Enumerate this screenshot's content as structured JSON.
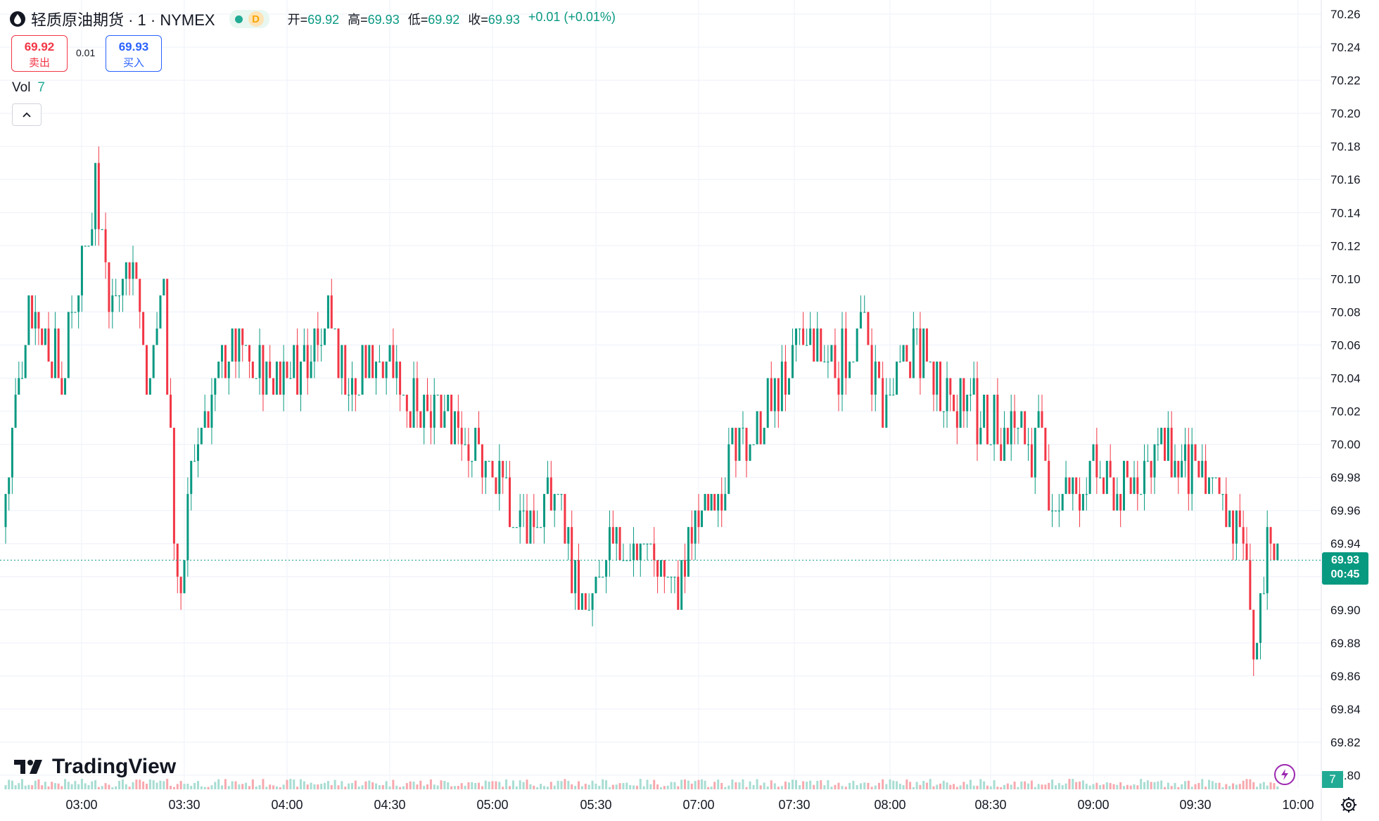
{
  "header": {
    "symbol": "轻质原油期货 · 1 · NYMEX",
    "status_letter": "D",
    "open_label": "开=",
    "open": "69.92",
    "high_label": "高=",
    "high": "69.93",
    "low_label": "低=",
    "low": "69.92",
    "close_label": "收=",
    "close": "69.93",
    "change": "+0.01 (+0.01%)"
  },
  "trade": {
    "sell_price": "69.92",
    "sell_label": "卖出",
    "spread": "0.01",
    "buy_price": "69.93",
    "buy_label": "买入"
  },
  "volume": {
    "label": "Vol",
    "value": "7"
  },
  "price_tag": {
    "price": "69.93",
    "countdown": "00:45"
  },
  "logo": {
    "text": "TradingView"
  },
  "icons": [
    "drop-icon",
    "chevron-up-icon",
    "bolt-icon",
    "gear-icon",
    "tradingview-logo-icon"
  ],
  "colors": {
    "up": "#089981",
    "down": "#f23645",
    "volume_up": "#a8ddd3",
    "volume_down": "#f7a8ae"
  },
  "chart_data": {
    "type": "candlestick",
    "ylim": [
      69.8,
      70.26
    ],
    "y_ticks": [
      "70.26",
      "70.24",
      "70.22",
      "70.20",
      "70.18",
      "70.16",
      "70.14",
      "70.12",
      "70.10",
      "70.08",
      "70.06",
      "70.04",
      "70.02",
      "70.00",
      "69.98",
      "69.96",
      "69.94",
      "69.92",
      "69.90",
      "69.88",
      "69.86",
      "69.84",
      "69.82",
      "69.80"
    ],
    "x_ticks": [
      "03:00",
      "03:30",
      "04:00",
      "04:30",
      "05:00",
      "05:30",
      "07:00",
      "07:30",
      "08:00",
      "08:30",
      "09:00",
      "09:30",
      "10:00"
    ],
    "series": [
      {
        "time": "02:37",
        "close": 69.95
      },
      {
        "time": "02:45",
        "close": 70.09
      },
      {
        "time": "02:55",
        "close": 70.04
      },
      {
        "time": "03:05",
        "close": 70.16
      },
      {
        "time": "03:10",
        "close": 70.08
      },
      {
        "time": "03:16",
        "close": 70.12
      },
      {
        "time": "03:20",
        "close": 70.03
      },
      {
        "time": "03:25",
        "close": 70.1
      },
      {
        "time": "03:29",
        "close": 69.9
      },
      {
        "time": "03:35",
        "close": 70.01
      },
      {
        "time": "03:45",
        "close": 70.06
      },
      {
        "time": "03:55",
        "close": 70.04
      },
      {
        "time": "04:05",
        "close": 70.05
      },
      {
        "time": "04:12",
        "close": 70.08
      },
      {
        "time": "04:20",
        "close": 70.03
      },
      {
        "time": "04:30",
        "close": 70.06
      },
      {
        "time": "04:40",
        "close": 70.01
      },
      {
        "time": "04:50",
        "close": 70.02
      },
      {
        "time": "05:00",
        "close": 69.98
      },
      {
        "time": "05:10",
        "close": 69.95
      },
      {
        "time": "05:20",
        "close": 69.97
      },
      {
        "time": "05:28",
        "close": 69.89
      },
      {
        "time": "05:35",
        "close": 69.93
      },
      {
        "time": "05:45",
        "close": 69.94
      },
      {
        "time": "05:55",
        "close": 69.91
      },
      {
        "time": "06:58",
        "close": 69.95
      },
      {
        "time": "07:05",
        "close": 69.97
      },
      {
        "time": "07:15",
        "close": 70.0
      },
      {
        "time": "07:25",
        "close": 70.03
      },
      {
        "time": "07:35",
        "close": 70.06
      },
      {
        "time": "07:45",
        "close": 70.05
      },
      {
        "time": "07:52",
        "close": 70.07
      },
      {
        "time": "08:00",
        "close": 70.02
      },
      {
        "time": "08:08",
        "close": 70.06
      },
      {
        "time": "08:15",
        "close": 70.04
      },
      {
        "time": "08:25",
        "close": 70.02
      },
      {
        "time": "08:35",
        "close": 70.01
      },
      {
        "time": "08:45",
        "close": 70.0
      },
      {
        "time": "08:50",
        "close": 69.96
      },
      {
        "time": "09:00",
        "close": 69.98
      },
      {
        "time": "09:10",
        "close": 69.97
      },
      {
        "time": "09:20",
        "close": 70.0
      },
      {
        "time": "09:30",
        "close": 69.98
      },
      {
        "time": "09:40",
        "close": 69.96
      },
      {
        "time": "09:46",
        "close": 69.93
      },
      {
        "time": "09:48",
        "close": 69.88
      },
      {
        "time": "09:52",
        "close": 69.94
      },
      {
        "time": "09:55",
        "close": 69.93
      }
    ],
    "last_price": 69.93
  }
}
